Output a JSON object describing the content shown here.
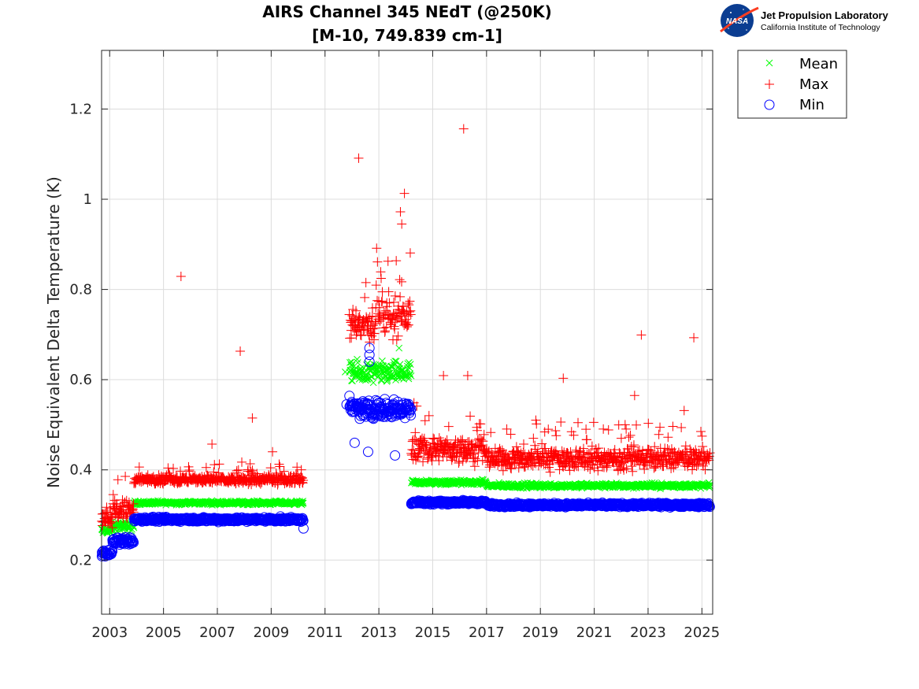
{
  "chart_data": {
    "type": "scatter",
    "title": [
      "AIRS Channel 345 NEdT (@250K)",
      "[M-10, 749.839 cm-1]"
    ],
    "xlabel": "",
    "ylabel": "Noise Equivalent Delta Temperature (K)",
    "xlim": [
      2002.7,
      2025.4
    ],
    "ylim": [
      0.08,
      1.33
    ],
    "xticks": [
      2003,
      2005,
      2007,
      2009,
      2011,
      2013,
      2015,
      2017,
      2019,
      2021,
      2023,
      2025
    ],
    "xtick_labels": [
      "2003",
      "2005",
      "2007",
      "2009",
      "2011",
      "2013",
      "2015",
      "2017",
      "2019",
      "2021",
      "2023",
      "2025"
    ],
    "yticks": [
      0.2,
      0.4,
      0.6,
      0.8,
      1.0,
      1.2
    ],
    "ytick_labels": [
      "0.2",
      "0.4",
      "0.6",
      "0.8",
      "1",
      "1.2"
    ],
    "grid": true,
    "legend_position": "outside-top-right",
    "series": [
      {
        "name": "Mean",
        "marker": "x",
        "color": "#00ff00",
        "segments": [
          {
            "x_range": [
              2002.7,
              2003.1
            ],
            "y_center": 0.265,
            "spread": 0.012
          },
          {
            "x_range": [
              2003.1,
              2003.9
            ],
            "y_center": 0.275,
            "spread": 0.015
          },
          {
            "x_range": [
              2003.9,
              2010.2
            ],
            "y_center": 0.327,
            "spread": 0.006
          },
          {
            "x_range": [
              2011.9,
              2014.2
            ],
            "y_center": 0.615,
            "spread": 0.035
          },
          {
            "x_range": [
              2014.2,
              2017.0
            ],
            "y_center": 0.372,
            "spread": 0.008
          },
          {
            "x_range": [
              2017.0,
              2025.3
            ],
            "y_center": 0.365,
            "spread": 0.008
          }
        ],
        "outliers": [
          {
            "x": 2011.75,
            "y": 0.617
          },
          {
            "x": 2013.75,
            "y": 0.67
          }
        ]
      },
      {
        "name": "Max",
        "marker": "+",
        "color": "#ff0000",
        "segments": [
          {
            "x_range": [
              2002.7,
              2003.1
            ],
            "y_center": 0.29,
            "spread": 0.03
          },
          {
            "x_range": [
              2003.1,
              2003.9
            ],
            "y_center": 0.31,
            "spread": 0.035
          },
          {
            "x_range": [
              2003.9,
              2010.2
            ],
            "y_center": 0.378,
            "spread": 0.014
          },
          {
            "x_range": [
              2011.9,
              2012.9
            ],
            "y_center": 0.72,
            "spread": 0.05
          },
          {
            "x_range": [
              2012.9,
              2014.2
            ],
            "y_center": 0.74,
            "spread": 0.06
          },
          {
            "x_range": [
              2014.2,
              2017.0
            ],
            "y_center": 0.445,
            "spread": 0.04
          },
          {
            "x_range": [
              2017.0,
              2025.3
            ],
            "y_center": 0.425,
            "spread": 0.035
          }
        ],
        "outliers": [
          {
            "x": 2005.65,
            "y": 0.829
          },
          {
            "x": 2007.85,
            "y": 0.663
          },
          {
            "x": 2008.3,
            "y": 0.515
          },
          {
            "x": 2006.8,
            "y": 0.457
          },
          {
            "x": 2009.05,
            "y": 0.44
          },
          {
            "x": 2012.25,
            "y": 1.091
          },
          {
            "x": 2013.95,
            "y": 1.013
          },
          {
            "x": 2013.8,
            "y": 0.972
          },
          {
            "x": 2013.85,
            "y": 0.945
          },
          {
            "x": 2016.15,
            "y": 1.156
          },
          {
            "x": 2022.75,
            "y": 0.699
          },
          {
            "x": 2024.7,
            "y": 0.693
          },
          {
            "x": 2019.85,
            "y": 0.603
          },
          {
            "x": 2015.4,
            "y": 0.609
          },
          {
            "x": 2016.3,
            "y": 0.609
          },
          {
            "x": 2022.5,
            "y": 0.565
          }
        ]
      },
      {
        "name": "Min",
        "marker": "o",
        "color": "#0000ff",
        "segments": [
          {
            "x_range": [
              2002.7,
              2003.1
            ],
            "y_center": 0.215,
            "spread": 0.01
          },
          {
            "x_range": [
              2003.1,
              2003.9
            ],
            "y_center": 0.242,
            "spread": 0.012
          },
          {
            "x_range": [
              2003.9,
              2010.2
            ],
            "y_center": 0.29,
            "spread": 0.007
          },
          {
            "x_range": [
              2011.9,
              2014.2
            ],
            "y_center": 0.535,
            "spread": 0.03
          },
          {
            "x_range": [
              2014.2,
              2017.0
            ],
            "y_center": 0.328,
            "spread": 0.006
          },
          {
            "x_range": [
              2017.0,
              2025.3
            ],
            "y_center": 0.322,
            "spread": 0.006
          }
        ],
        "outliers": [
          {
            "x": 2011.8,
            "y": 0.545
          },
          {
            "x": 2012.65,
            "y": 0.67
          },
          {
            "x": 2012.65,
            "y": 0.655
          },
          {
            "x": 2012.65,
            "y": 0.64
          },
          {
            "x": 2012.1,
            "y": 0.46
          },
          {
            "x": 2013.6,
            "y": 0.432
          },
          {
            "x": 2012.6,
            "y": 0.44
          },
          {
            "x": 2010.2,
            "y": 0.27
          }
        ]
      }
    ]
  },
  "legend": {
    "items": [
      {
        "label": "Mean",
        "marker": "x",
        "color": "#00ff00"
      },
      {
        "label": "Max",
        "marker": "+",
        "color": "#ff0000"
      },
      {
        "label": "Min",
        "marker": "o",
        "color": "#0000ff"
      }
    ]
  },
  "logo": {
    "icon": "nasa-meatball-icon",
    "badge_text": "NASA",
    "title": "Jet Propulsion Laboratory",
    "subtitle": "California Institute of Technology"
  }
}
